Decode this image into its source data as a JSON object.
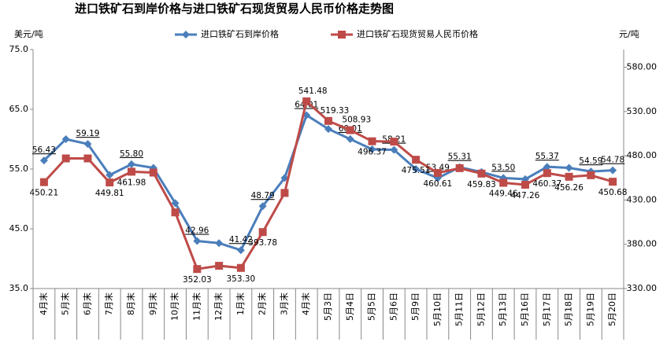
{
  "chart_data": {
    "type": "line",
    "title": "进口铁矿石到岸价格与进口铁矿石现货贸易人民币价格走势图",
    "y_label": "美元/吨",
    "y2_label": "元/吨",
    "categories": [
      "4月末",
      "5月末",
      "6月末",
      "7月末",
      "8月末",
      "9月末",
      "10月末",
      "11月末",
      "12月末",
      "1月末",
      "2月末",
      "3月末",
      "4月末",
      "5月3日",
      "5月4日",
      "5月5日",
      "5月6日",
      "5月9日",
      "5月10日",
      "5月11日",
      "5月12日",
      "5月13日",
      "5月16日",
      "5月17日",
      "5月18日",
      "5月19日",
      "5月20日"
    ],
    "series": [
      {
        "name": "进口铁矿石到岸价格",
        "color": "#4a7ebb",
        "marker": "diamond",
        "values": [
          56.43,
          60.0,
          59.19,
          54.0,
          55.8,
          55.2,
          49.3,
          42.96,
          42.6,
          41.42,
          48.79,
          53.5,
          64.01,
          61.7,
          60.01,
          58.3,
          58.21,
          55.0,
          53.49,
          55.31,
          54.5,
          53.5,
          53.3,
          55.37,
          55.2,
          54.59,
          54.78
        ],
        "value_labels": [
          "56.43",
          null,
          "59.19",
          null,
          "55.80",
          null,
          null,
          "42.96",
          null,
          "41.42",
          "48.79",
          null,
          "64.01",
          null,
          "60.01",
          null,
          "58.21",
          null,
          "53.49",
          "55.31",
          null,
          "53.50",
          null,
          "55.37",
          null,
          "54.59",
          "54.78"
        ]
      },
      {
        "name": "进口铁矿石现货贸易人民币价格",
        "color": "#be4b48",
        "marker": "square",
        "axis": "y2",
        "values": [
          450.21,
          477,
          477,
          449.81,
          461.98,
          461,
          416,
          352.03,
          355.7,
          353.3,
          393.78,
          438,
          541.48,
          519.33,
          508.93,
          496.37,
          496,
          475.51,
          460.61,
          466,
          459.83,
          449.46,
          447.26,
          460.37,
          456.26,
          458,
          450.68
        ],
        "value_labels": [
          "450.21",
          null,
          null,
          "449.81",
          "461.98",
          null,
          null,
          "352.03",
          null,
          "353.30",
          "393.78",
          null,
          "541.48",
          "519.33",
          "508.93",
          "496.37",
          null,
          "475.51",
          "460.61",
          null,
          "459.83",
          "449.46",
          "447.26",
          "460.37",
          "456.26",
          null,
          "450.68"
        ]
      }
    ],
    "ylim": [
      35,
      75
    ],
    "yticks": [
      {
        "value": 35,
        "label": "35.0"
      },
      {
        "value": 45,
        "label": "45.0"
      },
      {
        "value": 55,
        "label": "55.0"
      },
      {
        "value": 65,
        "label": "65.0"
      },
      {
        "value": 75,
        "label": "75.0"
      }
    ],
    "y2lim": [
      330,
      600
    ],
    "y2ticks": [
      {
        "value": 330,
        "label": "330.00"
      },
      {
        "value": 380,
        "label": "380.00"
      },
      {
        "value": 430,
        "label": "430.00"
      },
      {
        "value": 480,
        "label": "480.00"
      },
      {
        "value": 530,
        "label": "530.00"
      },
      {
        "value": 580,
        "label": "580.00"
      }
    ],
    "legend": "top"
  }
}
